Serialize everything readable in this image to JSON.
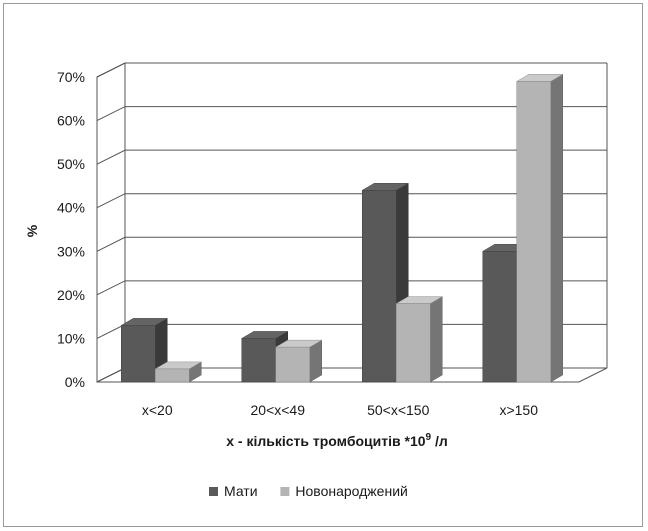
{
  "chart_data": {
    "type": "bar",
    "categories": [
      "x<20",
      "20<x<49",
      "50<x<150",
      "x>150"
    ],
    "series": [
      {
        "name": "Мати",
        "values": [
          13,
          10,
          44,
          30
        ],
        "color": "#595959"
      },
      {
        "name": "Новонароджений",
        "values": [
          3,
          8,
          18,
          69
        ],
        "color": "#b4b4b4"
      }
    ],
    "title": "",
    "ylabel": "%",
    "xlabel": {
      "prefix": "x - кількість тромбоцитів *10",
      "sup": "9",
      "suffix": " /л"
    },
    "ylim": [
      0,
      70
    ],
    "yticks": [
      0,
      10,
      20,
      30,
      40,
      50,
      60,
      70
    ],
    "ytick_suffix": "%",
    "grid": true,
    "three_d": true,
    "legend_position": "bottom"
  }
}
